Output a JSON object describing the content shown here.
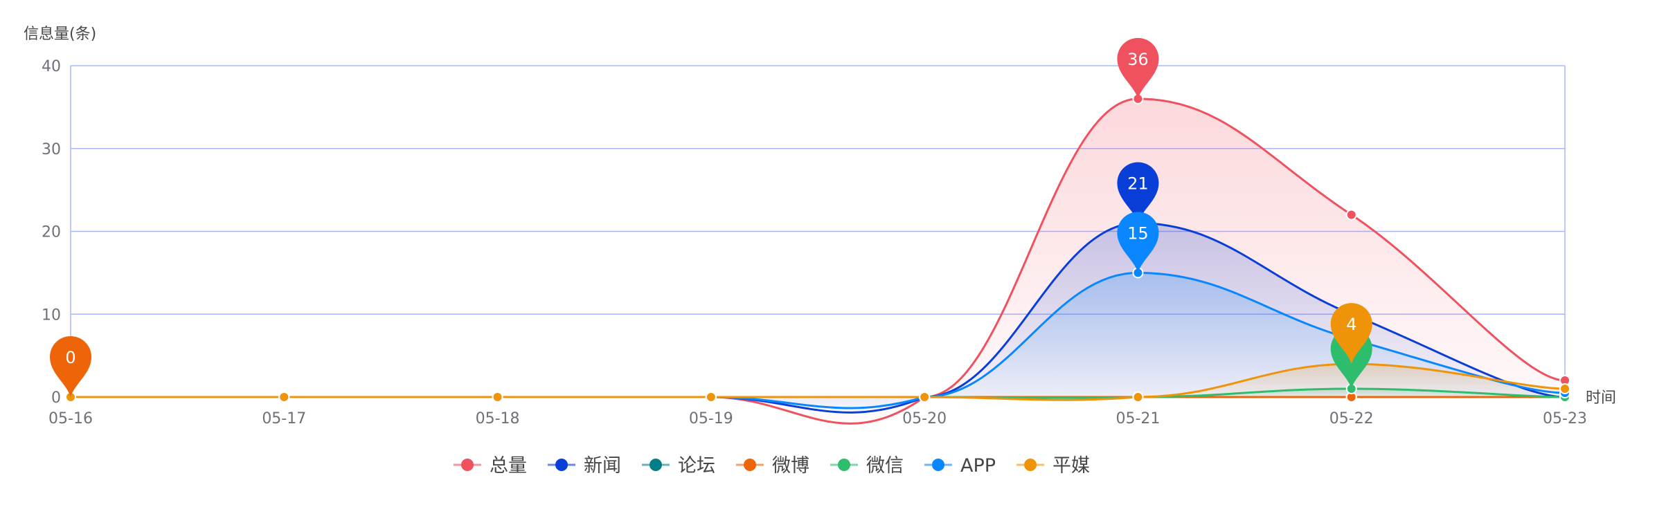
{
  "chart_data": {
    "type": "line",
    "smooth": true,
    "ylabel": "信息量(条)",
    "xlabel": "时间",
    "categories": [
      "05-16",
      "05-17",
      "05-18",
      "05-19",
      "05-20",
      "05-21",
      "05-22",
      "05-23"
    ],
    "ylim": [
      0,
      40
    ],
    "yticks": [
      0,
      10,
      20,
      30,
      40
    ],
    "grid": true,
    "legend_position": "bottom",
    "series": [
      {
        "name": "总量",
        "color": "#f0515f",
        "values": [
          0,
          0,
          0,
          0,
          0,
          36,
          22,
          2
        ],
        "area": true,
        "max_label": "36"
      },
      {
        "name": "新闻",
        "color": "#0a3ed8",
        "values": [
          0,
          0,
          0,
          0,
          0,
          21,
          10,
          0
        ],
        "area": true,
        "max_label": "21"
      },
      {
        "name": "论坛",
        "color": "#047e86",
        "values": [
          0,
          0,
          0,
          0,
          0,
          0,
          0,
          0
        ],
        "area": false,
        "max_label": ""
      },
      {
        "name": "微博",
        "color": "#ed6508",
        "values": [
          0,
          0,
          0,
          0,
          0,
          0,
          0,
          0
        ],
        "area": false,
        "max_label": "0"
      },
      {
        "name": "微信",
        "color": "#2dbd6c",
        "values": [
          0,
          0,
          0,
          0,
          0,
          0,
          1,
          0
        ],
        "area": true,
        "max_label": ""
      },
      {
        "name": "APP",
        "color": "#0a87ff",
        "values": [
          0,
          0,
          0,
          0,
          0,
          15,
          7,
          0.5
        ],
        "area": true,
        "max_label": "15"
      },
      {
        "name": "平媒",
        "color": "#ef9409",
        "values": [
          0,
          0,
          0,
          0,
          0,
          0,
          4,
          1
        ],
        "area": true,
        "max_label": "4"
      }
    ]
  }
}
